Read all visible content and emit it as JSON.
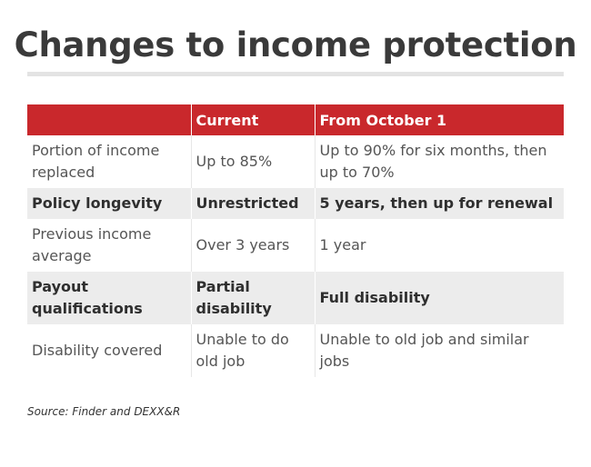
{
  "title": "Changes to income protection",
  "table": {
    "headers": [
      "",
      "Current",
      "From October 1"
    ],
    "rows": [
      [
        "Portion of income replaced",
        "Up to 85%",
        "Up to 90% for six months, then up to 70%"
      ],
      [
        "Policy longevity",
        "Unrestricted",
        "5 years, then up for renewal"
      ],
      [
        "Previous income average",
        "Over 3 years",
        "1 year"
      ],
      [
        "Payout qualifications",
        "Partial disability",
        "Full disability"
      ],
      [
        "Disability covered",
        "Unable to do old job",
        "Unable to old job and similar jobs"
      ]
    ]
  },
  "source": "Source: Finder and DEXX&R",
  "colors": {
    "header_bg": "#c9282c",
    "stripe_bg": "#ececec",
    "title_text": "#3a3a3a"
  }
}
